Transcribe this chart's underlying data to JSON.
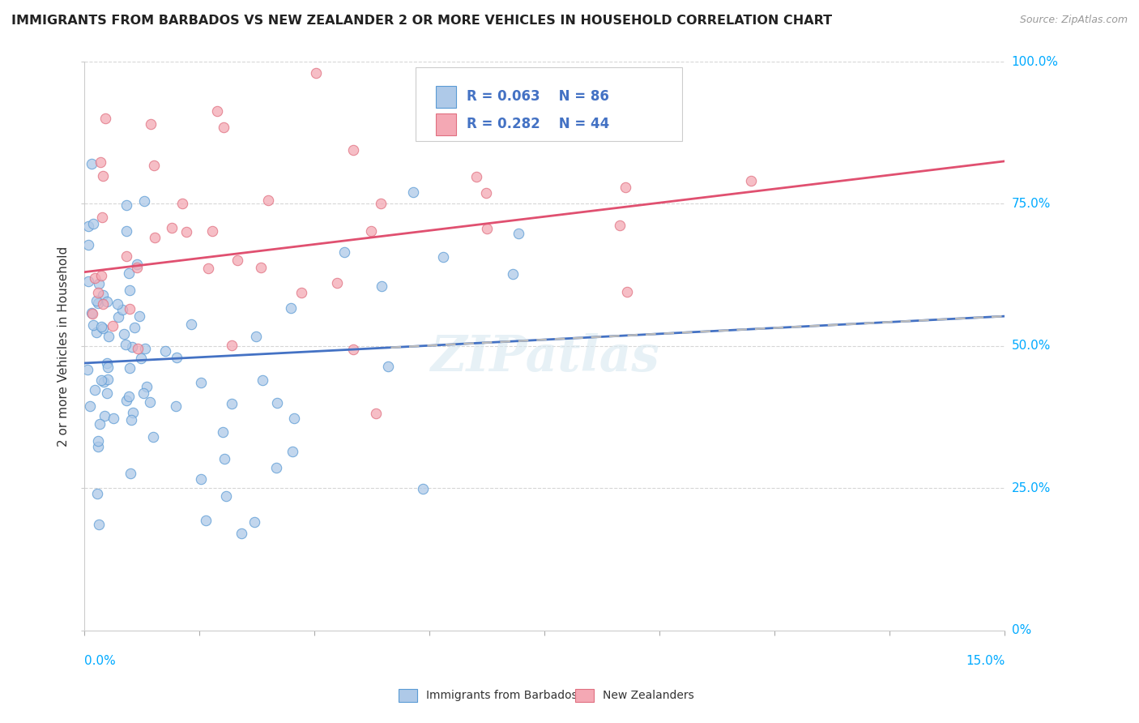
{
  "title": "IMMIGRANTS FROM BARBADOS VS NEW ZEALANDER 2 OR MORE VEHICLES IN HOUSEHOLD CORRELATION CHART",
  "source": "Source: ZipAtlas.com",
  "ylabel": "2 or more Vehicles in Household",
  "xmin": 0.0,
  "xmax": 15.0,
  "ymin": 0.0,
  "ymax": 100.0,
  "color_blue_fill": "#aec9e8",
  "color_blue_edge": "#5b9bd5",
  "color_pink_fill": "#f4a8b4",
  "color_pink_edge": "#e07080",
  "trend_blue_color": "#4472c4",
  "trend_pink_color": "#e05070",
  "dashed_color": "#bbbbbb",
  "grid_color": "#cccccc",
  "right_label_color": "#00aaff",
  "legend_text_color": "#4472c4",
  "background_color": "#ffffff",
  "title_color": "#222222",
  "source_color": "#999999",
  "ylabel_color": "#333333",
  "watermark_text": "ZIPatlas",
  "legend_label1": "Immigrants from Barbados",
  "legend_label2": "New Zealanders"
}
